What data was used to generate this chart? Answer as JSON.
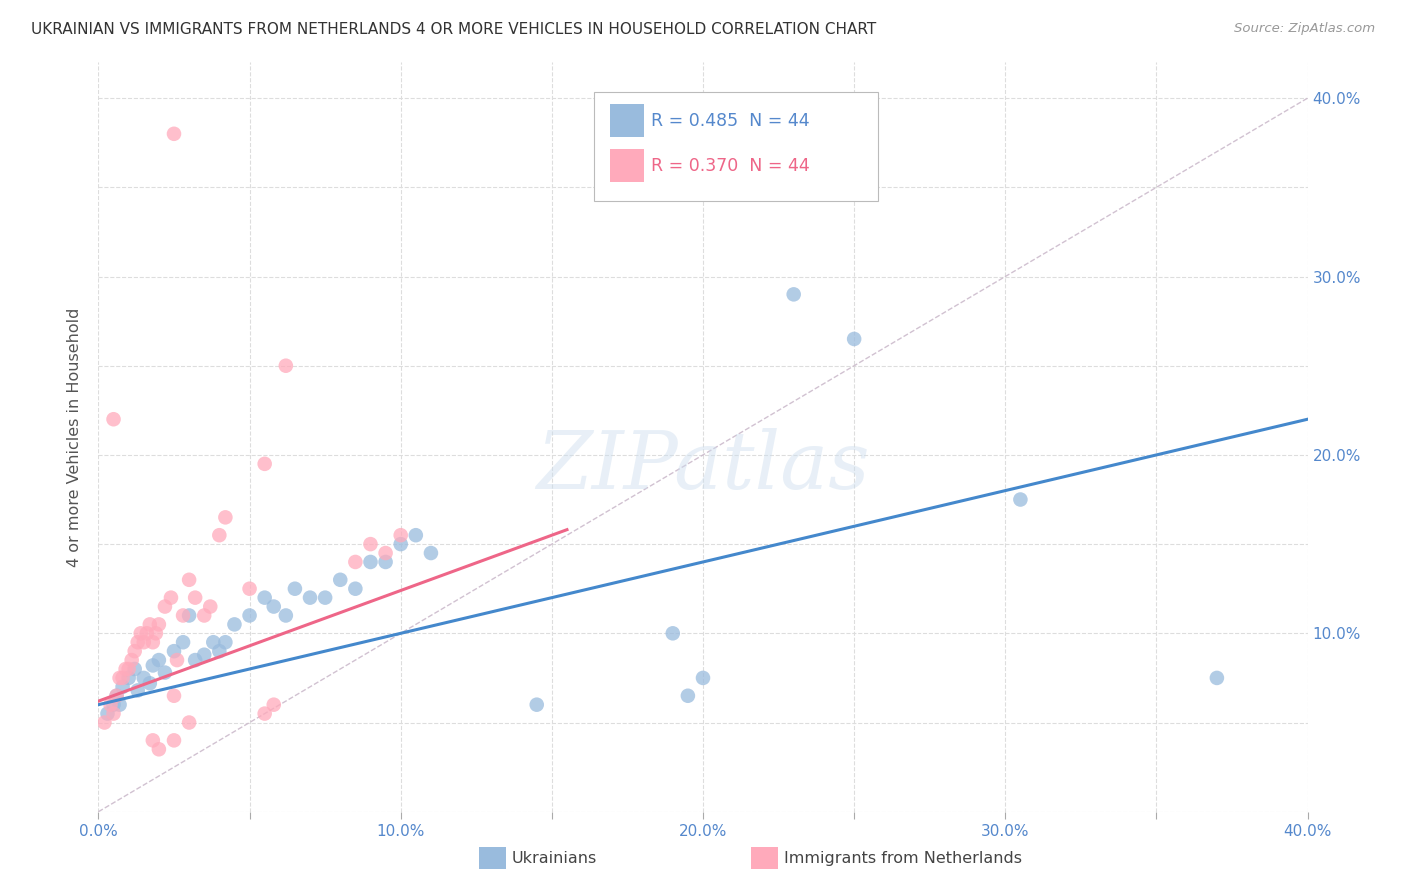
{
  "title": "UKRAINIAN VS IMMIGRANTS FROM NETHERLANDS 4 OR MORE VEHICLES IN HOUSEHOLD CORRELATION CHART",
  "source": "Source: ZipAtlas.com",
  "ylabel_label": "4 or more Vehicles in Household",
  "xlim": [
    0.0,
    0.4
  ],
  "ylim": [
    0.0,
    0.42
  ],
  "R_blue": 0.485,
  "N_blue": 44,
  "R_pink": 0.37,
  "N_pink": 44,
  "legend_label_blue": "Ukrainians",
  "legend_label_pink": "Immigrants from Netherlands",
  "blue_color": "#99BBDD",
  "pink_color": "#FFAABB",
  "trend_blue_color": "#4488CC",
  "trend_pink_color": "#EE6688",
  "diagonal_color": "#CCBBCC",
  "blue_scatter": [
    [
      0.003,
      0.055
    ],
    [
      0.005,
      0.06
    ],
    [
      0.006,
      0.065
    ],
    [
      0.007,
      0.06
    ],
    [
      0.008,
      0.07
    ],
    [
      0.01,
      0.075
    ],
    [
      0.012,
      0.08
    ],
    [
      0.013,
      0.068
    ],
    [
      0.015,
      0.075
    ],
    [
      0.017,
      0.072
    ],
    [
      0.018,
      0.082
    ],
    [
      0.02,
      0.085
    ],
    [
      0.022,
      0.078
    ],
    [
      0.025,
      0.09
    ],
    [
      0.028,
      0.095
    ],
    [
      0.03,
      0.11
    ],
    [
      0.032,
      0.085
    ],
    [
      0.035,
      0.088
    ],
    [
      0.038,
      0.095
    ],
    [
      0.04,
      0.09
    ],
    [
      0.042,
      0.095
    ],
    [
      0.045,
      0.105
    ],
    [
      0.05,
      0.11
    ],
    [
      0.055,
      0.12
    ],
    [
      0.058,
      0.115
    ],
    [
      0.062,
      0.11
    ],
    [
      0.065,
      0.125
    ],
    [
      0.07,
      0.12
    ],
    [
      0.075,
      0.12
    ],
    [
      0.08,
      0.13
    ],
    [
      0.085,
      0.125
    ],
    [
      0.09,
      0.14
    ],
    [
      0.095,
      0.14
    ],
    [
      0.1,
      0.15
    ],
    [
      0.105,
      0.155
    ],
    [
      0.11,
      0.145
    ],
    [
      0.145,
      0.06
    ],
    [
      0.19,
      0.1
    ],
    [
      0.195,
      0.065
    ],
    [
      0.2,
      0.075
    ],
    [
      0.23,
      0.29
    ],
    [
      0.25,
      0.265
    ],
    [
      0.305,
      0.175
    ],
    [
      0.37,
      0.075
    ]
  ],
  "pink_scatter": [
    [
      0.002,
      0.05
    ],
    [
      0.004,
      0.06
    ],
    [
      0.005,
      0.055
    ],
    [
      0.006,
      0.065
    ],
    [
      0.007,
      0.075
    ],
    [
      0.008,
      0.075
    ],
    [
      0.009,
      0.08
    ],
    [
      0.01,
      0.08
    ],
    [
      0.011,
      0.085
    ],
    [
      0.012,
      0.09
    ],
    [
      0.013,
      0.095
    ],
    [
      0.014,
      0.1
    ],
    [
      0.015,
      0.095
    ],
    [
      0.016,
      0.1
    ],
    [
      0.017,
      0.105
    ],
    [
      0.018,
      0.095
    ],
    [
      0.019,
      0.1
    ],
    [
      0.02,
      0.105
    ],
    [
      0.022,
      0.115
    ],
    [
      0.024,
      0.12
    ],
    [
      0.025,
      0.065
    ],
    [
      0.026,
      0.085
    ],
    [
      0.028,
      0.11
    ],
    [
      0.03,
      0.13
    ],
    [
      0.032,
      0.12
    ],
    [
      0.035,
      0.11
    ],
    [
      0.037,
      0.115
    ],
    [
      0.04,
      0.155
    ],
    [
      0.042,
      0.165
    ],
    [
      0.05,
      0.125
    ],
    [
      0.055,
      0.195
    ],
    [
      0.018,
      0.04
    ],
    [
      0.02,
      0.035
    ],
    [
      0.025,
      0.38
    ],
    [
      0.005,
      0.22
    ],
    [
      0.062,
      0.25
    ],
    [
      0.085,
      0.14
    ],
    [
      0.09,
      0.15
    ],
    [
      0.095,
      0.145
    ],
    [
      0.1,
      0.155
    ],
    [
      0.025,
      0.04
    ],
    [
      0.03,
      0.05
    ],
    [
      0.055,
      0.055
    ],
    [
      0.058,
      0.06
    ]
  ],
  "trend_blue_intercept": 0.06,
  "trend_blue_slope": 0.4,
  "trend_pink_intercept": 0.062,
  "trend_pink_slope": 0.62
}
